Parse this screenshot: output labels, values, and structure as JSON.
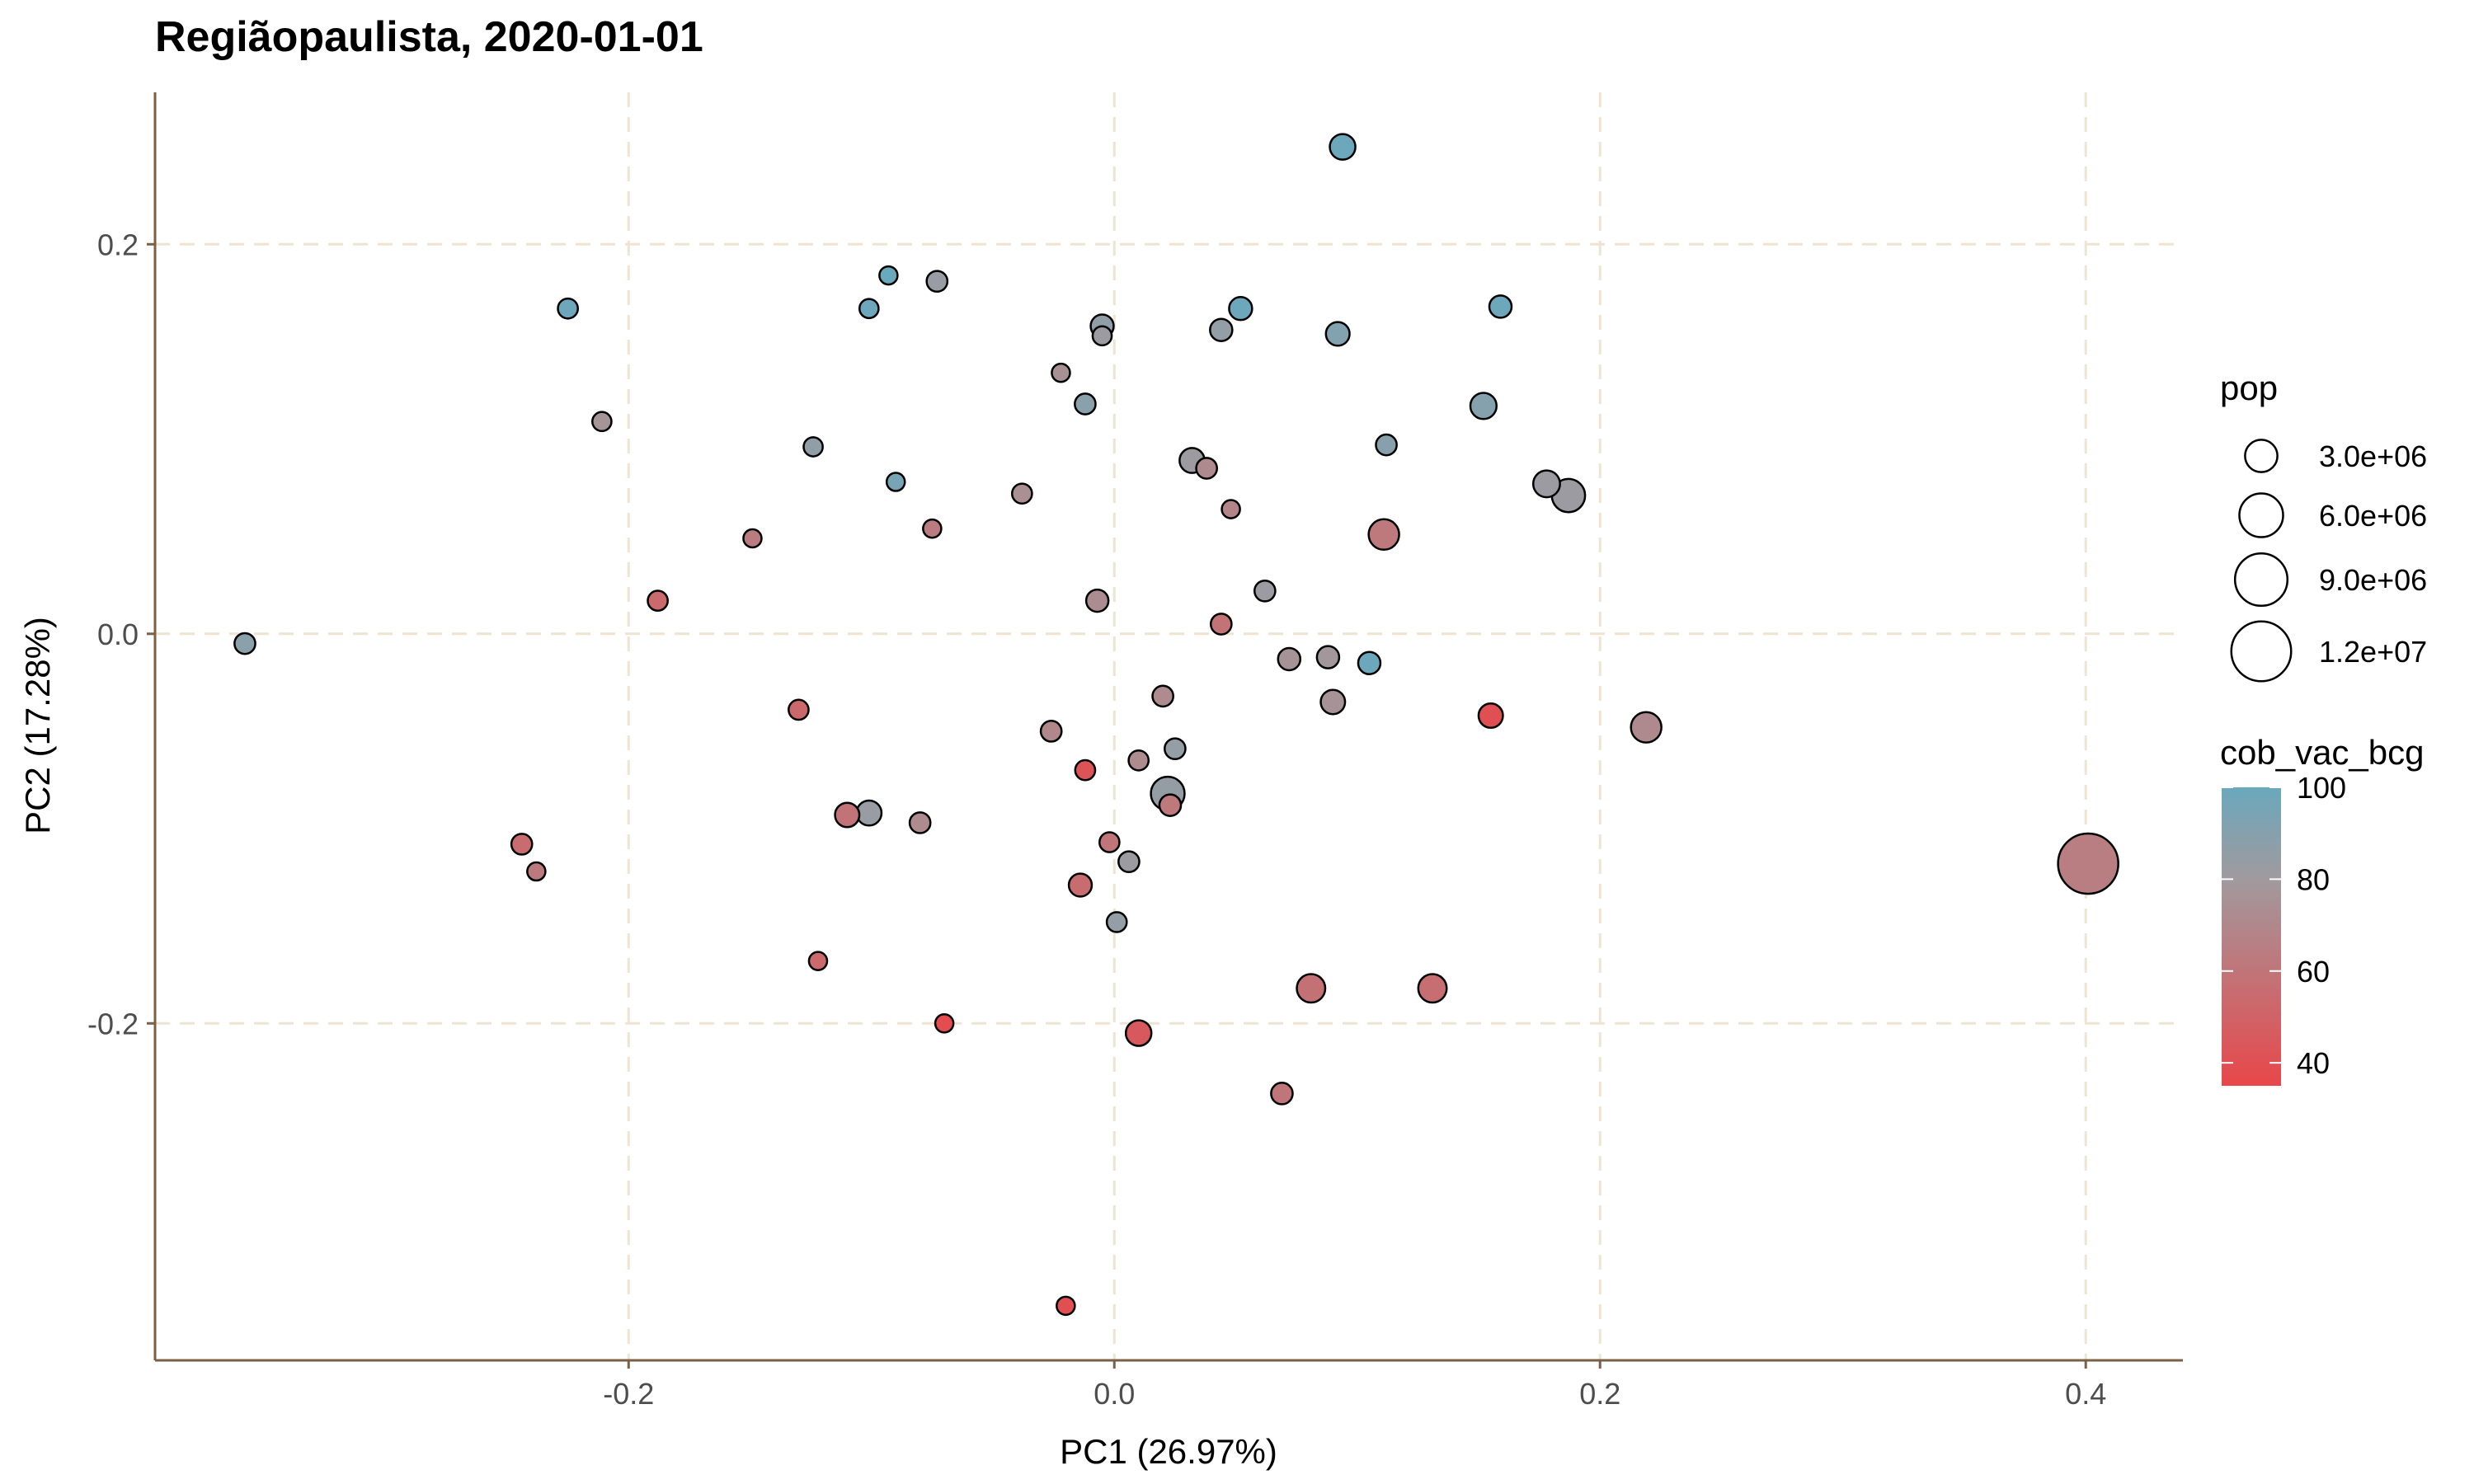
{
  "chart_data": {
    "type": "scatter",
    "title": "Regiãopaulista, 2020-01-01",
    "xlabel": "PC1 (26.97%)",
    "ylabel": "PC2 (17.28%)",
    "xlim": [
      -0.395,
      0.44
    ],
    "ylim": [
      -0.373,
      0.278
    ],
    "x_ticks": [
      -0.2,
      0.0,
      0.2,
      0.4
    ],
    "x_tick_labels": [
      "-0.2",
      "0.0",
      "0.2",
      "0.4"
    ],
    "y_ticks": [
      -0.2,
      0.0,
      0.2
    ],
    "y_tick_labels": [
      "-0.2",
      "0.0",
      "0.2"
    ],
    "grid": true,
    "size_legend": {
      "title": "pop",
      "values": [
        3000000,
        6000000,
        9000000,
        12000000
      ],
      "labels": [
        "3.0e+06",
        "6.0e+06",
        "9.0e+06",
        "1.2e+07"
      ]
    },
    "color_legend": {
      "title": "cob_vac_bcg",
      "range": [
        35,
        100
      ],
      "ticks": [
        40,
        60,
        80,
        100
      ],
      "tick_labels": [
        "40",
        "60",
        "80",
        "100"
      ],
      "low_color": "#e8474a",
      "mid_color": "#a09a9e",
      "high_color": "#6aa8bc"
    },
    "colors": {
      "axis": "#7a6046",
      "grid": "#efe3d2",
      "tick_text": "#4d4d4d"
    },
    "points": [
      {
        "x": 0.094,
        "y": 0.25,
        "pop": 1700000,
        "cob": 99
      },
      {
        "x": -0.225,
        "y": 0.167,
        "pop": 900000,
        "cob": 99
      },
      {
        "x": -0.093,
        "y": 0.184,
        "pop": 500000,
        "cob": 100
      },
      {
        "x": -0.101,
        "y": 0.167,
        "pop": 800000,
        "cob": 99
      },
      {
        "x": -0.073,
        "y": 0.181,
        "pop": 1000000,
        "cob": 83
      },
      {
        "x": 0.052,
        "y": 0.167,
        "pop": 1300000,
        "cob": 99
      },
      {
        "x": 0.159,
        "y": 0.168,
        "pop": 1200000,
        "cob": 99
      },
      {
        "x": -0.005,
        "y": 0.158,
        "pop": 1300000,
        "cob": 86
      },
      {
        "x": -0.005,
        "y": 0.153,
        "pop": 800000,
        "cob": 82
      },
      {
        "x": 0.044,
        "y": 0.156,
        "pop": 1200000,
        "cob": 85
      },
      {
        "x": 0.092,
        "y": 0.154,
        "pop": 1400000,
        "cob": 91
      },
      {
        "x": -0.022,
        "y": 0.134,
        "pop": 700000,
        "cob": 75
      },
      {
        "x": -0.012,
        "y": 0.118,
        "pop": 1000000,
        "cob": 88
      },
      {
        "x": 0.152,
        "y": 0.117,
        "pop": 1800000,
        "cob": 90
      },
      {
        "x": -0.211,
        "y": 0.109,
        "pop": 800000,
        "cob": 77
      },
      {
        "x": -0.124,
        "y": 0.096,
        "pop": 800000,
        "cob": 86
      },
      {
        "x": 0.112,
        "y": 0.097,
        "pop": 1000000,
        "cob": 89
      },
      {
        "x": 0.032,
        "y": 0.089,
        "pop": 1600000,
        "cob": 81
      },
      {
        "x": 0.038,
        "y": 0.085,
        "pop": 1000000,
        "cob": 71
      },
      {
        "x": 0.178,
        "y": 0.077,
        "pop": 1900000,
        "cob": 82
      },
      {
        "x": 0.187,
        "y": 0.071,
        "pop": 3200000,
        "cob": 82
      },
      {
        "x": -0.09,
        "y": 0.078,
        "pop": 700000,
        "cob": 95
      },
      {
        "x": -0.038,
        "y": 0.072,
        "pop": 900000,
        "cob": 74
      },
      {
        "x": 0.048,
        "y": 0.064,
        "pop": 700000,
        "cob": 68
      },
      {
        "x": -0.075,
        "y": 0.054,
        "pop": 700000,
        "cob": 64
      },
      {
        "x": -0.149,
        "y": 0.049,
        "pop": 600000,
        "cob": 64
      },
      {
        "x": 0.111,
        "y": 0.051,
        "pop": 2600000,
        "cob": 62
      },
      {
        "x": 0.062,
        "y": 0.022,
        "pop": 1000000,
        "cob": 82
      },
      {
        "x": -0.188,
        "y": 0.017,
        "pop": 900000,
        "cob": 54
      },
      {
        "x": -0.007,
        "y": 0.017,
        "pop": 1200000,
        "cob": 73
      },
      {
        "x": 0.044,
        "y": 0.005,
        "pop": 1000000,
        "cob": 59
      },
      {
        "x": -0.358,
        "y": -0.005,
        "pop": 1000000,
        "cob": 88
      },
      {
        "x": 0.072,
        "y": -0.013,
        "pop": 1200000,
        "cob": 76
      },
      {
        "x": 0.088,
        "y": -0.012,
        "pop": 1200000,
        "cob": 79
      },
      {
        "x": 0.105,
        "y": -0.015,
        "pop": 1200000,
        "cob": 99
      },
      {
        "x": 0.02,
        "y": -0.032,
        "pop": 1000000,
        "cob": 72
      },
      {
        "x": 0.09,
        "y": -0.035,
        "pop": 1500000,
        "cob": 76
      },
      {
        "x": 0.155,
        "y": -0.042,
        "pop": 1500000,
        "cob": 40
      },
      {
        "x": 0.219,
        "y": -0.048,
        "pop": 2600000,
        "cob": 71
      },
      {
        "x": -0.13,
        "y": -0.039,
        "pop": 900000,
        "cob": 53
      },
      {
        "x": -0.026,
        "y": -0.05,
        "pop": 1000000,
        "cob": 70
      },
      {
        "x": 0.025,
        "y": -0.059,
        "pop": 1000000,
        "cob": 85
      },
      {
        "x": 0.01,
        "y": -0.065,
        "pop": 900000,
        "cob": 72
      },
      {
        "x": -0.012,
        "y": -0.07,
        "pop": 900000,
        "cob": 42
      },
      {
        "x": 0.022,
        "y": -0.082,
        "pop": 3300000,
        "cob": 84
      },
      {
        "x": 0.023,
        "y": -0.088,
        "pop": 1100000,
        "cob": 62
      },
      {
        "x": -0.11,
        "y": -0.093,
        "pop": 1500000,
        "cob": 59
      },
      {
        "x": -0.101,
        "y": -0.092,
        "pop": 1600000,
        "cob": 83
      },
      {
        "x": -0.08,
        "y": -0.097,
        "pop": 1000000,
        "cob": 72
      },
      {
        "x": -0.002,
        "y": -0.107,
        "pop": 900000,
        "cob": 60
      },
      {
        "x": 0.006,
        "y": -0.117,
        "pop": 1000000,
        "cob": 82
      },
      {
        "x": -0.014,
        "y": -0.129,
        "pop": 1300000,
        "cob": 55
      },
      {
        "x": 0.401,
        "y": -0.118,
        "pop": 12200000,
        "cob": 65
      },
      {
        "x": -0.244,
        "y": -0.108,
        "pop": 1000000,
        "cob": 55
      },
      {
        "x": -0.238,
        "y": -0.122,
        "pop": 700000,
        "cob": 63
      },
      {
        "x": 0.001,
        "y": -0.148,
        "pop": 900000,
        "cob": 85
      },
      {
        "x": -0.122,
        "y": -0.168,
        "pop": 700000,
        "cob": 54
      },
      {
        "x": 0.081,
        "y": -0.182,
        "pop": 2200000,
        "cob": 58
      },
      {
        "x": 0.131,
        "y": -0.182,
        "pop": 2200000,
        "cob": 56
      },
      {
        "x": -0.07,
        "y": -0.2,
        "pop": 700000,
        "cob": 38
      },
      {
        "x": 0.01,
        "y": -0.205,
        "pop": 1700000,
        "cob": 45
      },
      {
        "x": 0.069,
        "y": -0.236,
        "pop": 1100000,
        "cob": 60
      },
      {
        "x": -0.02,
        "y": -0.345,
        "pop": 700000,
        "cob": 40
      }
    ]
  }
}
